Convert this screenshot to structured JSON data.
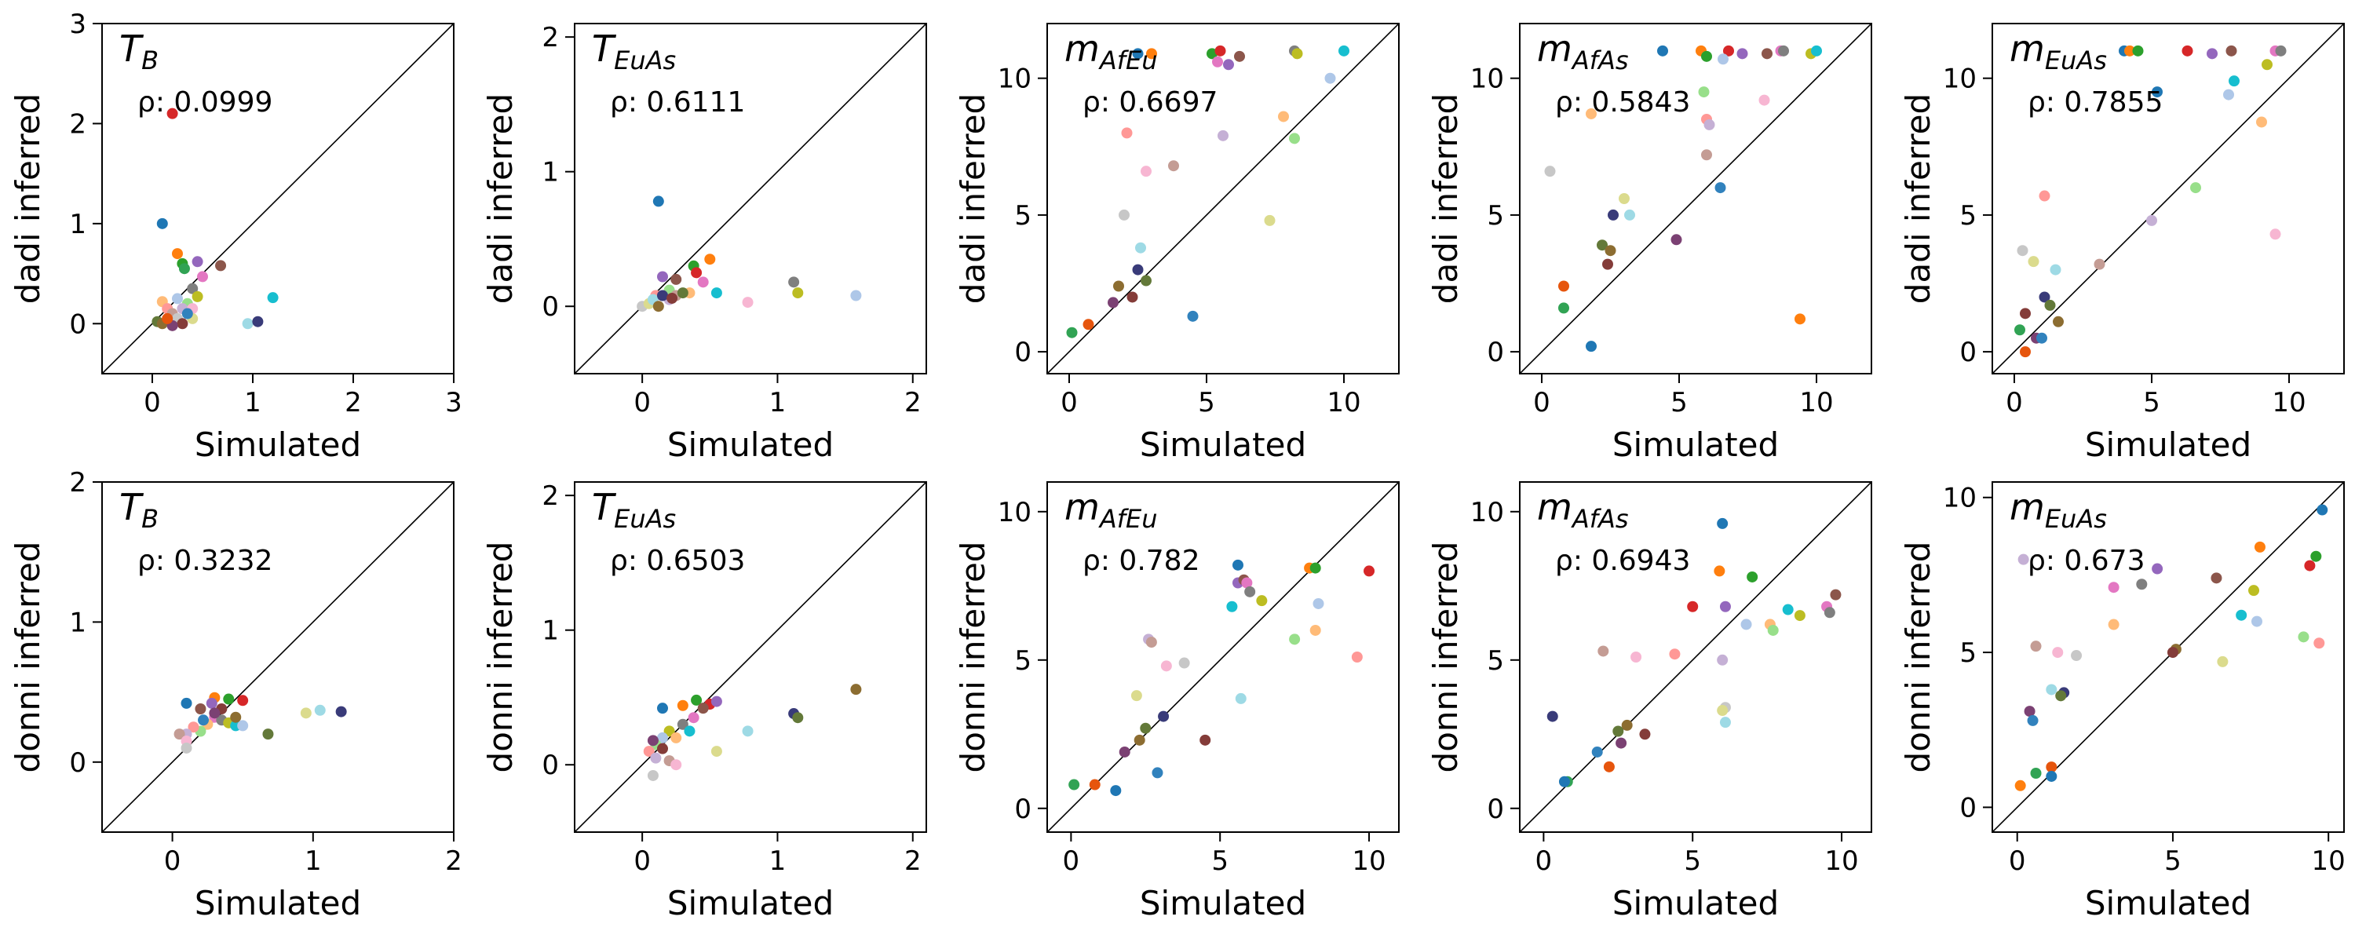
{
  "colors": {
    "palette": [
      "#1f77b4",
      "#ff7f0e",
      "#2ca02c",
      "#d62728",
      "#9467bd",
      "#8c564b",
      "#e377c2",
      "#7f7f7f",
      "#bcbd22",
      "#17becf",
      "#aec7e8",
      "#ffbb78",
      "#98df8a",
      "#ff9896",
      "#c5b0d5",
      "#c49c94",
      "#f7b6d2",
      "#c7c7c7",
      "#dbdb8d",
      "#9edae5",
      "#393b79",
      "#637939",
      "#8c6d31",
      "#843c39",
      "#7b4173",
      "#3182bd",
      "#e6550d",
      "#31a354"
    ],
    "diagonal": "#000000",
    "frame": "#000000"
  },
  "chart_data": [
    {
      "type": "scatter",
      "row_label": "dadi inferred",
      "title": "T",
      "title_sub": "B",
      "rho": "ρ: 0.0999",
      "xlabel": "Simulated",
      "ylabel": "dadi inferred",
      "xlim": [
        -0.5,
        3
      ],
      "ylim": [
        -0.5,
        3
      ],
      "xticks": [
        0,
        1,
        2,
        3
      ],
      "yticks": [
        0,
        1,
        2,
        3
      ],
      "points": [
        [
          0.1,
          1.0
        ],
        [
          0.25,
          0.7
        ],
        [
          0.3,
          0.6
        ],
        [
          0.2,
          2.1
        ],
        [
          0.45,
          0.62
        ],
        [
          0.68,
          0.58
        ],
        [
          0.5,
          0.47
        ],
        [
          0.4,
          0.35
        ],
        [
          0.45,
          0.27
        ],
        [
          1.2,
          0.26
        ],
        [
          0.25,
          0.25
        ],
        [
          0.1,
          0.22
        ],
        [
          0.35,
          0.2
        ],
        [
          0.15,
          0.15
        ],
        [
          0.3,
          0.15
        ],
        [
          0.2,
          0.1
        ],
        [
          0.4,
          0.15
        ],
        [
          0.25,
          0.05
        ],
        [
          0.4,
          0.05
        ],
        [
          0.95,
          0.0
        ],
        [
          1.05,
          0.02
        ],
        [
          0.05,
          0.02
        ],
        [
          0.1,
          0.0
        ],
        [
          0.3,
          0.0
        ],
        [
          0.2,
          -0.02
        ],
        [
          0.35,
          0.1
        ],
        [
          0.15,
          0.05
        ],
        [
          0.32,
          0.55
        ]
      ]
    },
    {
      "type": "scatter",
      "row_label": "dadi inferred",
      "title": "T",
      "title_sub": "EuAs",
      "rho": "ρ: 0.6111",
      "xlabel": "Simulated",
      "ylabel": "dadi inferred",
      "xlim": [
        -0.5,
        2.1
      ],
      "ylim": [
        -0.5,
        2.1
      ],
      "xticks": [
        0,
        1,
        2
      ],
      "yticks": [
        0,
        1,
        2
      ],
      "points": [
        [
          0.12,
          0.78
        ],
        [
          0.5,
          0.35
        ],
        [
          0.38,
          0.3
        ],
        [
          0.4,
          0.25
        ],
        [
          0.15,
          0.22
        ],
        [
          0.25,
          0.2
        ],
        [
          0.45,
          0.18
        ],
        [
          1.12,
          0.18
        ],
        [
          1.15,
          0.1
        ],
        [
          0.55,
          0.1
        ],
        [
          1.58,
          0.08
        ],
        [
          0.35,
          0.1
        ],
        [
          0.2,
          0.12
        ],
        [
          0.1,
          0.08
        ],
        [
          0.2,
          0.05
        ],
        [
          0.25,
          0.08
        ],
        [
          0.78,
          0.03
        ],
        [
          0.0,
          0.0
        ],
        [
          0.05,
          0.02
        ],
        [
          0.08,
          0.05
        ],
        [
          0.15,
          0.08
        ],
        [
          0.3,
          0.1
        ],
        [
          0.12,
          0.0
        ],
        [
          0.22,
          0.06
        ]
      ]
    },
    {
      "type": "scatter",
      "row_label": "dadi inferred",
      "title": "m",
      "title_sub": "AfEu",
      "rho": "ρ: 0.6697",
      "xlabel": "Simulated",
      "ylabel": "dadi inferred",
      "xlim": [
        -0.8,
        12
      ],
      "ylim": [
        -0.8,
        12
      ],
      "xticks": [
        0,
        5,
        10
      ],
      "yticks": [
        0,
        5,
        10
      ],
      "points": [
        [
          2.5,
          10.9
        ],
        [
          3.0,
          10.9
        ],
        [
          5.2,
          10.9
        ],
        [
          5.5,
          11.0
        ],
        [
          5.8,
          10.5
        ],
        [
          6.2,
          10.8
        ],
        [
          5.4,
          10.6
        ],
        [
          8.2,
          11.0
        ],
        [
          8.3,
          10.9
        ],
        [
          10.0,
          11.0
        ],
        [
          9.5,
          10.0
        ],
        [
          7.8,
          8.6
        ],
        [
          8.2,
          7.8
        ],
        [
          2.1,
          8.0
        ],
        [
          5.6,
          7.9
        ],
        [
          3.8,
          6.8
        ],
        [
          2.8,
          6.6
        ],
        [
          2.0,
          5.0
        ],
        [
          7.3,
          4.8
        ],
        [
          2.6,
          3.8
        ],
        [
          2.5,
          3.0
        ],
        [
          2.8,
          2.6
        ],
        [
          1.8,
          2.4
        ],
        [
          2.3,
          2.0
        ],
        [
          1.6,
          1.8
        ],
        [
          4.5,
          1.3
        ],
        [
          0.7,
          1.0
        ],
        [
          0.1,
          0.7
        ]
      ]
    },
    {
      "type": "scatter",
      "row_label": "dadi inferred",
      "title": "m",
      "title_sub": "AfAs",
      "rho": "ρ: 0.5843",
      "xlabel": "Simulated",
      "ylabel": "dadi inferred",
      "xlim": [
        -0.8,
        12
      ],
      "ylim": [
        -0.8,
        12
      ],
      "xticks": [
        0,
        5,
        10
      ],
      "yticks": [
        0,
        5,
        10
      ],
      "points": [
        [
          4.4,
          11.0
        ],
        [
          5.8,
          11.0
        ],
        [
          6.0,
          10.8
        ],
        [
          6.8,
          11.0
        ],
        [
          7.3,
          10.9
        ],
        [
          8.2,
          10.9
        ],
        [
          8.7,
          11.0
        ],
        [
          8.8,
          11.0
        ],
        [
          9.8,
          10.9
        ],
        [
          10.0,
          11.0
        ],
        [
          6.6,
          10.7
        ],
        [
          1.8,
          8.7
        ],
        [
          5.9,
          9.5
        ],
        [
          6.0,
          8.5
        ],
        [
          6.1,
          8.3
        ],
        [
          6.0,
          7.2
        ],
        [
          8.1,
          9.2
        ],
        [
          0.3,
          6.6
        ],
        [
          3.0,
          5.6
        ],
        [
          3.2,
          5.0
        ],
        [
          2.6,
          5.0
        ],
        [
          2.2,
          3.9
        ],
        [
          2.5,
          3.7
        ],
        [
          2.4,
          3.2
        ],
        [
          4.9,
          4.1
        ],
        [
          6.5,
          6.0
        ],
        [
          0.8,
          2.4
        ],
        [
          0.8,
          1.6
        ],
        [
          1.8,
          0.2
        ],
        [
          9.4,
          1.2
        ]
      ]
    },
    {
      "type": "scatter",
      "row_label": "dadi inferred",
      "title": "m",
      "title_sub": "EuAs",
      "rho": "ρ: 0.7855",
      "xlabel": "Simulated",
      "ylabel": "dadi inferred",
      "xlim": [
        -0.8,
        12
      ],
      "ylim": [
        -0.8,
        12
      ],
      "xticks": [
        0,
        5,
        10
      ],
      "yticks": [
        0,
        5,
        10
      ],
      "points": [
        [
          4.0,
          11.0
        ],
        [
          4.2,
          11.0
        ],
        [
          4.5,
          11.0
        ],
        [
          6.3,
          11.0
        ],
        [
          7.2,
          10.9
        ],
        [
          7.9,
          11.0
        ],
        [
          9.5,
          11.0
        ],
        [
          9.7,
          11.0
        ],
        [
          9.2,
          10.5
        ],
        [
          8.0,
          9.9
        ],
        [
          7.8,
          9.4
        ],
        [
          9.0,
          8.4
        ],
        [
          6.6,
          6.0
        ],
        [
          1.1,
          5.7
        ],
        [
          5.0,
          4.8
        ],
        [
          3.1,
          3.2
        ],
        [
          9.5,
          4.3
        ],
        [
          0.3,
          3.7
        ],
        [
          0.7,
          3.3
        ],
        [
          1.5,
          3.0
        ],
        [
          1.1,
          2.0
        ],
        [
          1.3,
          1.7
        ],
        [
          1.6,
          1.1
        ],
        [
          0.4,
          1.4
        ],
        [
          0.8,
          0.5
        ],
        [
          1.0,
          0.5
        ],
        [
          0.4,
          0.0
        ],
        [
          0.2,
          0.8
        ],
        [
          5.2,
          9.5
        ]
      ]
    },
    {
      "type": "scatter",
      "row_label": "donni inferred",
      "title": "T",
      "title_sub": "B",
      "rho": "ρ: 0.3232",
      "xlabel": "Simulated",
      "ylabel": "donni inferred",
      "xlim": [
        -0.5,
        2
      ],
      "ylim": [
        -0.5,
        2
      ],
      "xticks": [
        0,
        1,
        2
      ],
      "yticks": [
        0,
        1,
        2
      ],
      "points": [
        [
          0.1,
          0.42
        ],
        [
          0.3,
          0.46
        ],
        [
          0.4,
          0.45
        ],
        [
          0.5,
          0.44
        ],
        [
          0.28,
          0.42
        ],
        [
          0.2,
          0.38
        ],
        [
          0.3,
          0.32
        ],
        [
          0.35,
          0.3
        ],
        [
          0.4,
          0.28
        ],
        [
          0.45,
          0.26
        ],
        [
          0.5,
          0.26
        ],
        [
          0.25,
          0.27
        ],
        [
          0.2,
          0.22
        ],
        [
          0.15,
          0.25
        ],
        [
          0.1,
          0.2
        ],
        [
          0.05,
          0.2
        ],
        [
          0.1,
          0.15
        ],
        [
          0.1,
          0.1
        ],
        [
          0.95,
          0.35
        ],
        [
          1.05,
          0.37
        ],
        [
          1.2,
          0.36
        ],
        [
          0.68,
          0.2
        ],
        [
          0.45,
          0.32
        ],
        [
          0.35,
          0.38
        ],
        [
          0.3,
          0.35
        ],
        [
          0.22,
          0.3
        ]
      ]
    },
    {
      "type": "scatter",
      "row_label": "donni inferred",
      "title": "T",
      "title_sub": "EuAs",
      "rho": "ρ: 0.6503",
      "xlabel": "Simulated",
      "ylabel": "donni inferred",
      "xlim": [
        -0.5,
        2.1
      ],
      "ylim": [
        -0.5,
        2.1
      ],
      "xticks": [
        0,
        1,
        2
      ],
      "yticks": [
        0,
        1,
        2
      ],
      "points": [
        [
          0.15,
          0.42
        ],
        [
          0.3,
          0.44
        ],
        [
          0.4,
          0.48
        ],
        [
          0.5,
          0.45
        ],
        [
          0.55,
          0.47
        ],
        [
          0.45,
          0.42
        ],
        [
          0.38,
          0.35
        ],
        [
          0.3,
          0.3
        ],
        [
          0.2,
          0.25
        ],
        [
          0.35,
          0.25
        ],
        [
          0.15,
          0.2
        ],
        [
          0.25,
          0.2
        ],
        [
          0.1,
          0.15
        ],
        [
          0.05,
          0.1
        ],
        [
          0.1,
          0.05
        ],
        [
          0.2,
          0.03
        ],
        [
          0.25,
          0.0
        ],
        [
          0.08,
          -0.08
        ],
        [
          0.55,
          0.1
        ],
        [
          0.78,
          0.25
        ],
        [
          1.12,
          0.38
        ],
        [
          1.15,
          0.35
        ],
        [
          1.58,
          0.56
        ],
        [
          0.15,
          0.12
        ],
        [
          0.08,
          0.18
        ]
      ]
    },
    {
      "type": "scatter",
      "row_label": "donni inferred",
      "title": "m",
      "title_sub": "AfEu",
      "rho": "ρ: 0.782",
      "xlabel": "Simulated",
      "ylabel": "donni inferred",
      "xlim": [
        -0.8,
        11
      ],
      "ylim": [
        -0.8,
        11
      ],
      "xticks": [
        0,
        5,
        10
      ],
      "yticks": [
        0,
        5,
        10
      ],
      "points": [
        [
          5.6,
          8.2
        ],
        [
          8.0,
          8.1
        ],
        [
          8.2,
          8.1
        ],
        [
          10.0,
          8.0
        ],
        [
          5.6,
          7.6
        ],
        [
          5.8,
          7.7
        ],
        [
          5.9,
          7.6
        ],
        [
          6.0,
          7.3
        ],
        [
          6.4,
          7.0
        ],
        [
          5.4,
          6.8
        ],
        [
          8.3,
          6.9
        ],
        [
          8.2,
          6.0
        ],
        [
          7.5,
          5.7
        ],
        [
          9.6,
          5.1
        ],
        [
          2.6,
          5.7
        ],
        [
          2.7,
          5.6
        ],
        [
          3.2,
          4.8
        ],
        [
          3.8,
          4.9
        ],
        [
          2.2,
          3.8
        ],
        [
          5.7,
          3.7
        ],
        [
          3.1,
          3.1
        ],
        [
          2.5,
          2.7
        ],
        [
          2.3,
          2.3
        ],
        [
          4.5,
          2.3
        ],
        [
          1.8,
          1.9
        ],
        [
          2.9,
          1.2
        ],
        [
          0.8,
          0.8
        ],
        [
          0.1,
          0.8
        ],
        [
          1.5,
          0.6
        ]
      ]
    },
    {
      "type": "scatter",
      "row_label": "donni inferred",
      "title": "m",
      "title_sub": "AfAs",
      "rho": "ρ: 0.6943",
      "xlabel": "Simulated",
      "ylabel": "donni inferred",
      "xlim": [
        -0.8,
        11
      ],
      "ylim": [
        -0.8,
        11
      ],
      "xticks": [
        0,
        5,
        10
      ],
      "yticks": [
        0,
        5,
        10
      ],
      "points": [
        [
          6.0,
          9.6
        ],
        [
          5.9,
          8.0
        ],
        [
          7.0,
          7.8
        ],
        [
          5.0,
          6.8
        ],
        [
          6.1,
          6.8
        ],
        [
          9.8,
          7.2
        ],
        [
          9.5,
          6.8
        ],
        [
          9.6,
          6.6
        ],
        [
          8.6,
          6.5
        ],
        [
          8.2,
          6.7
        ],
        [
          6.8,
          6.2
        ],
        [
          7.6,
          6.2
        ],
        [
          7.7,
          6.0
        ],
        [
          4.4,
          5.2
        ],
        [
          6.0,
          5.0
        ],
        [
          2.0,
          5.3
        ],
        [
          3.1,
          5.1
        ],
        [
          6.1,
          3.4
        ],
        [
          6.0,
          3.3
        ],
        [
          6.1,
          2.9
        ],
        [
          0.3,
          3.1
        ],
        [
          2.5,
          2.6
        ],
        [
          2.8,
          2.8
        ],
        [
          3.4,
          2.5
        ],
        [
          2.6,
          2.2
        ],
        [
          1.8,
          1.9
        ],
        [
          2.2,
          1.4
        ],
        [
          0.8,
          0.9
        ],
        [
          0.7,
          0.9
        ]
      ]
    },
    {
      "type": "scatter",
      "row_label": "donni inferred",
      "title": "m",
      "title_sub": "EuAs",
      "rho": "ρ: 0.673",
      "xlabel": "Simulated",
      "ylabel": "donni inferred",
      "xlim": [
        -0.8,
        10.5
      ],
      "ylim": [
        -0.8,
        10.5
      ],
      "xticks": [
        0,
        5,
        10
      ],
      "yticks": [
        0,
        5,
        10
      ],
      "points": [
        [
          9.8,
          9.6
        ],
        [
          7.8,
          8.4
        ],
        [
          9.6,
          8.1
        ],
        [
          9.4,
          7.8
        ],
        [
          4.5,
          7.7
        ],
        [
          6.4,
          7.4
        ],
        [
          3.1,
          7.1
        ],
        [
          4.0,
          7.2
        ],
        [
          7.6,
          7.0
        ],
        [
          7.2,
          6.2
        ],
        [
          7.7,
          6.0
        ],
        [
          3.1,
          5.9
        ],
        [
          9.2,
          5.5
        ],
        [
          9.7,
          5.3
        ],
        [
          0.2,
          8.0
        ],
        [
          0.6,
          5.2
        ],
        [
          1.3,
          5.0
        ],
        [
          1.9,
          4.9
        ],
        [
          6.6,
          4.7
        ],
        [
          1.1,
          3.8
        ],
        [
          1.5,
          3.7
        ],
        [
          1.4,
          3.6
        ],
        [
          5.1,
          5.1
        ],
        [
          5.0,
          5.0
        ],
        [
          0.4,
          3.1
        ],
        [
          0.5,
          2.8
        ],
        [
          1.1,
          1.3
        ],
        [
          0.6,
          1.1
        ],
        [
          1.1,
          1.0
        ],
        [
          0.1,
          0.7
        ]
      ]
    }
  ]
}
